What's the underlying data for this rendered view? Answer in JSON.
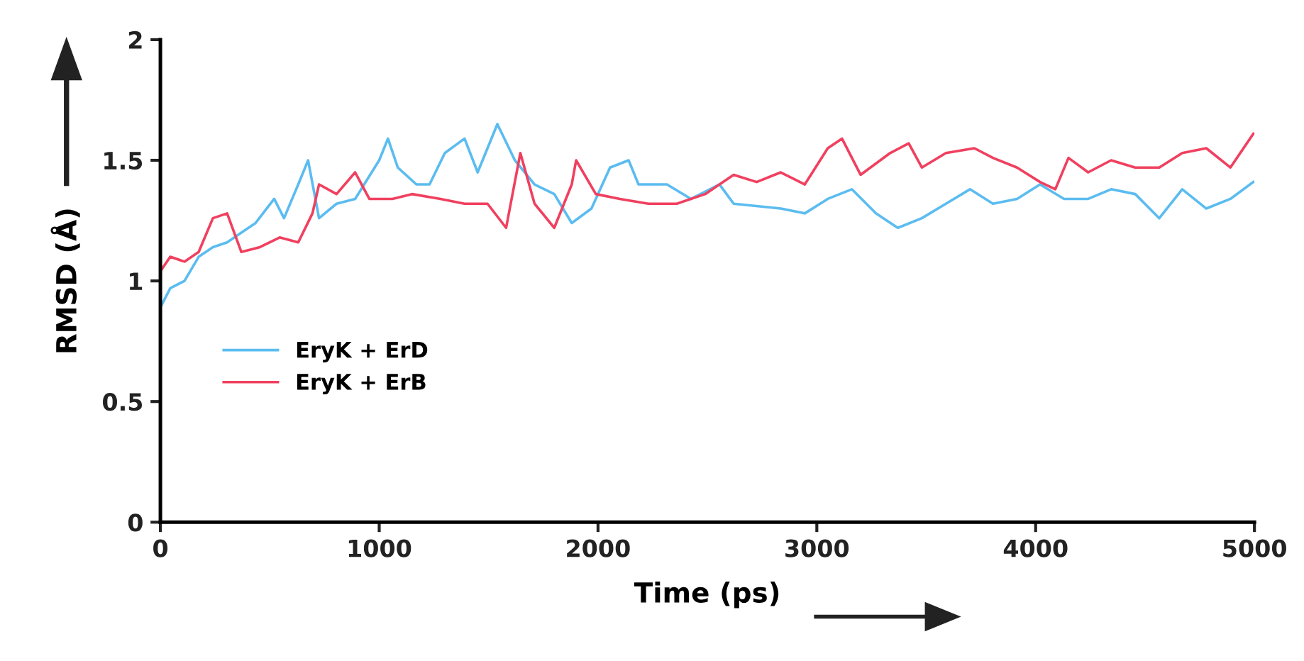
{
  "chart_data": {
    "type": "line",
    "xlabel": "Time (ps)",
    "ylabel": "RMSD (Å)",
    "xlim": [
      0,
      5000
    ],
    "xticks": [
      0,
      1000,
      2000,
      3000,
      4000,
      5000
    ],
    "ylim": [
      0,
      2
    ],
    "yticks": [
      0,
      0.5,
      1,
      1.5,
      2
    ],
    "grid": false,
    "legend": "left",
    "marker": "none",
    "line_style": "solid",
    "series": [
      {
        "name": "EryK + ErD",
        "color": "#5bbcf0",
        "x": [
          0,
          45,
          110,
          175,
          240,
          305,
          370,
          435,
          520,
          565,
          630,
          675,
          725,
          805,
          890,
          1000,
          1040,
          1085,
          1170,
          1230,
          1300,
          1390,
          1450,
          1540,
          1620,
          1710,
          1800,
          1880,
          1970,
          2055,
          2140,
          2185,
          2315,
          2425,
          2555,
          2620,
          2835,
          2945,
          3050,
          3160,
          3270,
          3370,
          3480,
          3590,
          3700,
          3805,
          3915,
          4020,
          4130,
          4240,
          4345,
          4455,
          4565,
          4670,
          4780,
          4890,
          4995
        ],
        "values": [
          0.89,
          0.97,
          1.0,
          1.1,
          1.14,
          1.16,
          1.2,
          1.24,
          1.34,
          1.26,
          1.4,
          1.5,
          1.26,
          1.32,
          1.34,
          1.5,
          1.59,
          1.47,
          1.4,
          1.4,
          1.53,
          1.59,
          1.45,
          1.65,
          1.5,
          1.4,
          1.36,
          1.24,
          1.3,
          1.47,
          1.5,
          1.4,
          1.4,
          1.34,
          1.4,
          1.32,
          1.3,
          1.28,
          1.34,
          1.38,
          1.28,
          1.22,
          1.26,
          1.32,
          1.38,
          1.32,
          1.34,
          1.4,
          1.34,
          1.34,
          1.38,
          1.36,
          1.26,
          1.38,
          1.3,
          1.34,
          1.41
        ]
      },
      {
        "name": "EryK + ErB",
        "color": "#f0405f",
        "x": [
          0,
          45,
          110,
          175,
          240,
          305,
          370,
          455,
          545,
          630,
          695,
          725,
          805,
          890,
          955,
          1060,
          1150,
          1280,
          1390,
          1495,
          1580,
          1645,
          1710,
          1800,
          1880,
          1900,
          1990,
          2100,
          2230,
          2360,
          2490,
          2620,
          2725,
          2835,
          2945,
          3050,
          3115,
          3200,
          3335,
          3420,
          3480,
          3590,
          3720,
          3805,
          3915,
          4020,
          4090,
          4150,
          4240,
          4345,
          4455,
          4565,
          4670,
          4780,
          4890,
          4995
        ],
        "values": [
          1.04,
          1.1,
          1.08,
          1.12,
          1.26,
          1.28,
          1.12,
          1.14,
          1.18,
          1.16,
          1.28,
          1.4,
          1.36,
          1.45,
          1.34,
          1.34,
          1.36,
          1.34,
          1.32,
          1.32,
          1.22,
          1.53,
          1.32,
          1.22,
          1.4,
          1.5,
          1.36,
          1.34,
          1.32,
          1.32,
          1.36,
          1.44,
          1.41,
          1.45,
          1.4,
          1.55,
          1.59,
          1.44,
          1.53,
          1.57,
          1.47,
          1.53,
          1.55,
          1.51,
          1.47,
          1.41,
          1.38,
          1.51,
          1.45,
          1.5,
          1.47,
          1.47,
          1.53,
          1.55,
          1.47,
          1.61
        ]
      }
    ]
  }
}
